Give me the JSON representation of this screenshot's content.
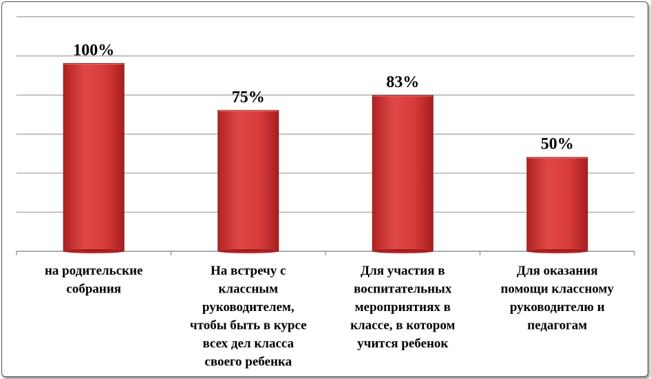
{
  "chart_data": {
    "type": "bar",
    "categories": [
      [
        "на родительские",
        "собрания"
      ],
      [
        "На встречу с",
        "классным",
        "руководителем,",
        "чтобы быть в курсе",
        "всех дел класса",
        "своего ребенка"
      ],
      [
        "Для участия в",
        "воспитательных",
        "мероприятиях в",
        "классе, в котором",
        "учится ребенок"
      ],
      [
        "Для оказания",
        "помощи классному",
        "руководителю и",
        "педагогам"
      ]
    ],
    "values": [
      100,
      75,
      83,
      50
    ],
    "data_labels": [
      "100%",
      "75%",
      "83%",
      "50%"
    ],
    "title": "",
    "xlabel": "",
    "ylabel": "",
    "ylim": [
      0,
      125
    ],
    "grid": true,
    "bar_color": "#d23b3b"
  }
}
